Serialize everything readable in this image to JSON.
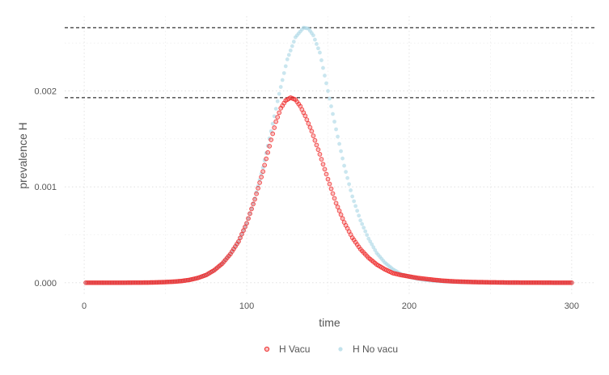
{
  "chart_data": {
    "type": "scatter",
    "title": "",
    "xlabel": "time",
    "ylabel": "prevalence H",
    "xlim": [
      -12,
      314
    ],
    "ylim": [
      -0.000128,
      0.00278
    ],
    "x_ticks": [
      "0",
      "100",
      "200",
      "300"
    ],
    "y_ticks": [
      "0.000",
      "0.001",
      "0.002"
    ],
    "grid": true,
    "legend_position": "bottom",
    "reference_lines": [
      0.00266,
      0.00193
    ],
    "series": [
      {
        "name": "H Vacu",
        "color": "#ee2c2c",
        "shape": "circle-open",
        "x": [
          1,
          5,
          10,
          15,
          20,
          25,
          30,
          35,
          40,
          45,
          50,
          55,
          60,
          65,
          70,
          75,
          80,
          85,
          90,
          95,
          100,
          105,
          110,
          115,
          118,
          121,
          124,
          127,
          130,
          133,
          136,
          140,
          145,
          150,
          155,
          160,
          165,
          170,
          175,
          180,
          185,
          190,
          195,
          200,
          205,
          210,
          215,
          220,
          225,
          230,
          240,
          250,
          260,
          270,
          280,
          290,
          300
        ],
        "y": [
          0,
          0,
          0,
          0,
          0,
          0,
          1e-06,
          1e-06,
          2e-06,
          4e-06,
          7e-06,
          1.1e-05,
          1.8e-05,
          3e-05,
          5e-05,
          8e-05,
          0.00013,
          0.0002,
          0.0003,
          0.00043,
          0.00062,
          0.00087,
          0.00116,
          0.00149,
          0.00168,
          0.00182,
          0.0019,
          0.00193,
          0.00191,
          0.00184,
          0.00174,
          0.00158,
          0.00134,
          0.00108,
          0.00083,
          0.00063,
          0.00047,
          0.00035,
          0.00026,
          0.00019,
          0.00014,
          0.0001,
          8e-05,
          6.5e-05,
          5e-05,
          4e-05,
          3e-05,
          2.2e-05,
          1.6e-05,
          1.2e-05,
          7e-06,
          4e-06,
          2e-06,
          1e-06,
          1e-06,
          0,
          0
        ]
      },
      {
        "name": "H No vacu",
        "color": "#add8e6",
        "shape": "circle",
        "x": [
          1,
          5,
          10,
          15,
          20,
          25,
          30,
          35,
          40,
          45,
          50,
          55,
          60,
          65,
          70,
          75,
          80,
          85,
          90,
          95,
          100,
          105,
          110,
          115,
          120,
          125,
          130,
          135,
          138,
          141,
          145,
          150,
          155,
          160,
          165,
          170,
          175,
          180,
          185,
          190,
          195,
          200,
          205,
          210,
          215,
          220,
          230,
          240,
          250,
          260,
          270,
          280,
          290,
          300
        ],
        "y": [
          0,
          0,
          0,
          0,
          0,
          0,
          1e-06,
          1e-06,
          2e-06,
          4e-06,
          7e-06,
          1.1e-05,
          1.8e-05,
          3e-05,
          5e-05,
          8e-05,
          0.00013,
          0.0002,
          0.0003,
          0.00043,
          0.00062,
          0.00088,
          0.0012,
          0.00158,
          0.00197,
          0.00233,
          0.00256,
          0.00266,
          0.00265,
          0.00258,
          0.0024,
          0.002,
          0.0016,
          0.00122,
          0.0009,
          0.00065,
          0.00046,
          0.00031,
          0.00021,
          0.00014,
          9e-05,
          6e-05,
          4e-05,
          2.8e-05,
          2e-05,
          1.4e-05,
          7e-06,
          4e-06,
          2e-06,
          1e-06,
          1e-06,
          0,
          0,
          0
        ]
      }
    ]
  }
}
